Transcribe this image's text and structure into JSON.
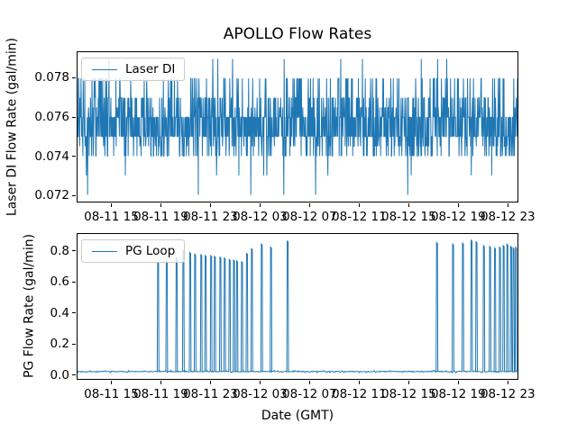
{
  "chart_data": [
    {
      "type": "line",
      "id": "laser-di",
      "title": "APOLLO Flow Rates",
      "ylabel": "Laser DI Flow Rate (gal/min)",
      "xlabel": "",
      "legend": {
        "label": "Laser DI",
        "position": "upper left"
      },
      "line_color": "#1f77b4",
      "grid": false,
      "ylim": [
        0.07165,
        0.07935
      ],
      "yticks": [
        0.072,
        0.074,
        0.076,
        0.078
      ],
      "ytick_labels": [
        "0.072",
        "0.074",
        "0.076",
        "0.078"
      ],
      "xlim_hours": [
        12.2,
        47.85
      ],
      "xticks_hours": [
        15,
        19,
        23,
        27,
        31,
        35,
        39,
        43,
        47
      ],
      "xtick_labels": [
        "08-11 15",
        "08-11 19",
        "08-11 23",
        "08-12 03",
        "08-12 07",
        "08-12 11",
        "08-12 15",
        "08-12 19",
        "08-12 23"
      ],
      "series": [
        {
          "name": "Laser DI",
          "kind": "quantized_noise",
          "n_points": 1400,
          "seed": 20240811,
          "levels": [
            0.072,
            0.073,
            0.074,
            0.0745,
            0.075,
            0.076,
            0.0765,
            0.077,
            0.078,
            0.079
          ],
          "weights": [
            0.004,
            0.012,
            0.1,
            0.06,
            0.28,
            0.28,
            0.06,
            0.12,
            0.075,
            0.007
          ],
          "min": 0.072,
          "max": 0.079,
          "typical": 0.0755
        }
      ]
    },
    {
      "type": "line",
      "id": "pg-loop",
      "title": "",
      "ylabel": "PG Flow Rate (gal/min)",
      "xlabel": "Date (GMT)",
      "legend": {
        "label": "PG Loop",
        "position": "upper left"
      },
      "line_color": "#1f77b4",
      "grid": false,
      "ylim": [
        -0.03,
        0.916
      ],
      "yticks": [
        0.0,
        0.2,
        0.4,
        0.6,
        0.8
      ],
      "ytick_labels": [
        "0.0",
        "0.2",
        "0.4",
        "0.6",
        "0.8"
      ],
      "xlim_hours": [
        12.2,
        47.85
      ],
      "xticks_hours": [
        15,
        19,
        23,
        27,
        31,
        35,
        39,
        43,
        47
      ],
      "xtick_labels": [
        "08-11 15",
        "08-11 19",
        "08-11 23",
        "08-12 03",
        "08-12 07",
        "08-12 11",
        "08-12 15",
        "08-12 19",
        "08-12 23"
      ],
      "series": [
        {
          "name": "PG Loop",
          "kind": "baseline_with_spikes",
          "baseline": 0.018,
          "baseline_noise": 0.008,
          "seed": 7,
          "spikes_hour_value": [
            [
              18.7,
              0.73
            ],
            [
              19.4,
              0.74
            ],
            [
              20.2,
              0.76
            ],
            [
              20.75,
              0.81
            ],
            [
              21.3,
              0.795
            ],
            [
              21.7,
              0.785
            ],
            [
              22.2,
              0.78
            ],
            [
              22.55,
              0.775
            ],
            [
              23.0,
              0.775
            ],
            [
              23.3,
              0.77
            ],
            [
              23.75,
              0.765
            ],
            [
              24.1,
              0.76
            ],
            [
              24.5,
              0.75
            ],
            [
              24.85,
              0.745
            ],
            [
              25.1,
              0.74
            ],
            [
              25.5,
              0.735
            ],
            [
              25.9,
              0.79
            ],
            [
              26.3,
              0.82
            ],
            [
              27.1,
              0.85
            ],
            [
              27.85,
              0.83
            ],
            [
              29.2,
              0.87
            ],
            [
              41.3,
              0.86
            ],
            [
              42.6,
              0.85
            ],
            [
              43.4,
              0.857
            ],
            [
              44.1,
              0.875
            ],
            [
              44.5,
              0.865
            ],
            [
              45.1,
              0.84
            ],
            [
              45.6,
              0.835
            ],
            [
              46.0,
              0.825
            ],
            [
              46.4,
              0.83
            ],
            [
              46.7,
              0.84
            ],
            [
              47.0,
              0.85
            ],
            [
              47.3,
              0.835
            ],
            [
              47.5,
              0.825
            ],
            [
              47.7,
              0.83
            ]
          ]
        }
      ]
    }
  ]
}
